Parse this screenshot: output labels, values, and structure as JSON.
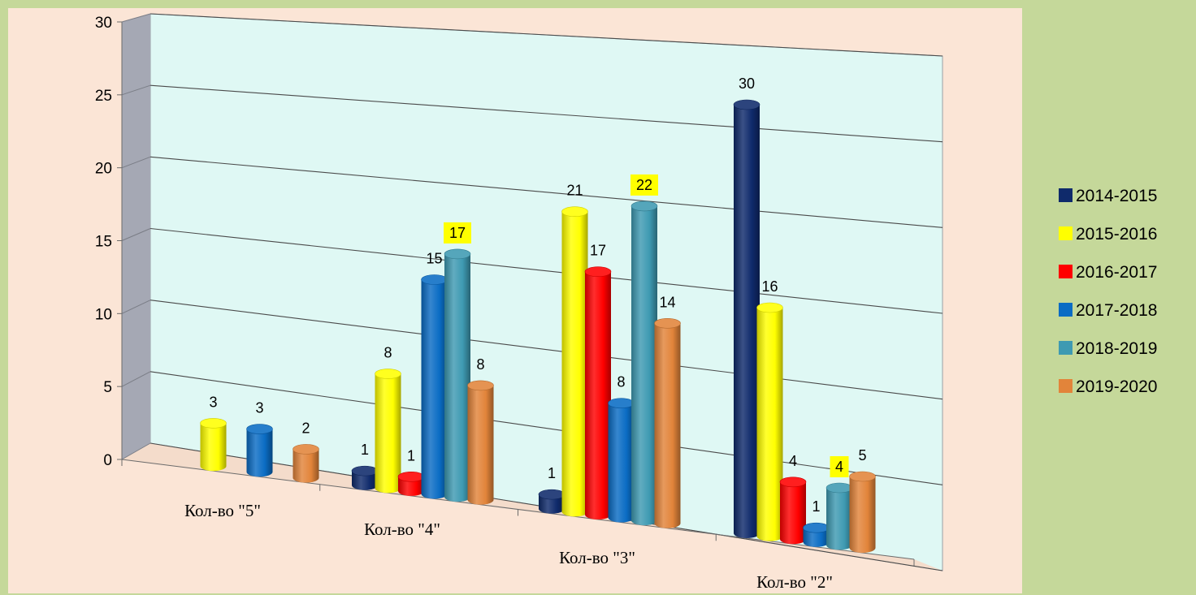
{
  "chart_data": {
    "type": "bar",
    "categories": [
      "Кол-во \"5\"",
      "Кол-во \"4\"",
      "Кол-во \"3\"",
      "Кол-во \"2\""
    ],
    "ylim": [
      0,
      30
    ],
    "yticks": [
      0,
      5,
      10,
      15,
      20,
      25,
      30
    ],
    "grid": true,
    "legend_position": "right",
    "series": [
      {
        "name": "2014-2015",
        "color": "#0f2a6b",
        "values": [
          null,
          1,
          1,
          30
        ]
      },
      {
        "name": "2015-2016",
        "color": "#ffff00",
        "values": [
          3,
          8,
          21,
          16
        ]
      },
      {
        "name": "2016-2017",
        "color": "#ff0000",
        "values": [
          null,
          1,
          17,
          4
        ]
      },
      {
        "name": "2017-2018",
        "color": "#0a6cc4",
        "values": [
          3,
          15,
          8,
          1
        ]
      },
      {
        "name": "2018-2019",
        "color": "#3e9ab2",
        "values": [
          null,
          17,
          22,
          4
        ]
      },
      {
        "name": "2019-2020",
        "color": "#e2843a",
        "values": [
          2,
          8,
          14,
          5
        ]
      }
    ],
    "highlighted_labels": [
      {
        "series": "2018-2019",
        "category": "Кол-во \"4\""
      },
      {
        "series": "2018-2019",
        "category": "Кол-во \"3\""
      },
      {
        "series": "2018-2019",
        "category": "Кол-во \"2\""
      }
    ],
    "colors": {
      "page_background": "#c5d89a",
      "plot_background": "#fbe5d6",
      "back_wall": "#dff8f4",
      "side_wall": "#a5a8b4",
      "floor": "#f4dccb",
      "label_highlight": "#ffff00"
    }
  }
}
